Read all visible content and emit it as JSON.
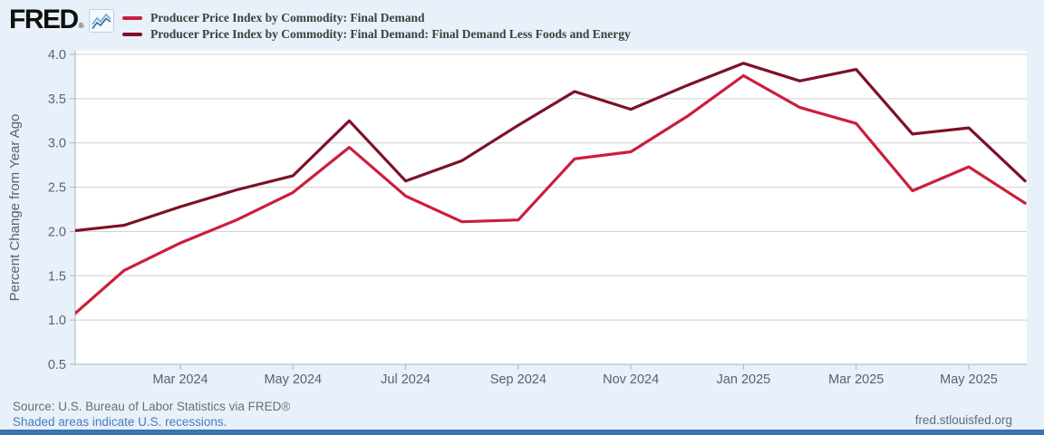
{
  "header": {
    "logo_text": "FRED",
    "logo_reg": "®",
    "legend": [
      {
        "label": "Producer Price Index by Commodity: Final Demand",
        "color": "#cc1e3c"
      },
      {
        "label": "Producer Price Index by Commodity: Final Demand: Final Demand Less Foods and Energy",
        "color": "#7d1128"
      }
    ]
  },
  "footer": {
    "source": "Source: U.S. Bureau of Labor Statistics via FRED®",
    "recessions_note": "Shaded areas indicate U.S. recessions.",
    "site": "fred.stlouisfed.org"
  },
  "colors": {
    "page_bg": "#e8f1fa",
    "plot_bg": "#ffffff",
    "grid": "#cfcfcf",
    "axis": "#a9b4c0",
    "tick_text": "#5a6270",
    "series_final_demand": "#cc1e3c",
    "series_less_foods_energy": "#7d1128",
    "bottom_bar": "#3c72b0",
    "link_blue": "#4a7bbf"
  },
  "chart_data": {
    "type": "line",
    "title": "",
    "xlabel": "",
    "ylabel": "Percent Change from Year Ago",
    "ylim": [
      0.5,
      4.0
    ],
    "ytick_step": 0.5,
    "ytick_labels": [
      "4.0",
      "3.5",
      "3.0",
      "2.5",
      "2.0",
      "1.5",
      "1.0",
      "0.5"
    ],
    "grid": "horizontal",
    "legend_position": "top-left",
    "x": [
      "2024-01",
      "2024-02",
      "2024-03",
      "2024-04",
      "2024-05",
      "2024-06",
      "2024-07",
      "2024-08",
      "2024-09",
      "2024-10",
      "2024-11",
      "2024-12",
      "2025-01",
      "2025-02",
      "2025-03",
      "2025-04",
      "2025-05",
      "2025-06"
    ],
    "xtick_labels": [
      {
        "index": 2,
        "label": "Mar 2024"
      },
      {
        "index": 4,
        "label": "May 2024"
      },
      {
        "index": 6,
        "label": "Jul 2024"
      },
      {
        "index": 8,
        "label": "Sep 2024"
      },
      {
        "index": 10,
        "label": "Nov 2024"
      },
      {
        "index": 12,
        "label": "Jan 2025"
      },
      {
        "index": 14,
        "label": "Mar 2025"
      },
      {
        "index": 16,
        "label": "May 2025"
      }
    ],
    "series": [
      {
        "name": "Producer Price Index by Commodity: Final Demand",
        "color": "#cc1e3c",
        "values": [
          1.0,
          1.56,
          1.87,
          2.13,
          2.44,
          2.95,
          2.4,
          2.11,
          2.13,
          2.82,
          2.9,
          3.3,
          3.76,
          3.4,
          3.22,
          2.46,
          2.73,
          2.32
        ]
      },
      {
        "name": "Producer Price Index by Commodity: Final Demand: Final Demand Less Foods and Energy",
        "color": "#7d1128",
        "values": [
          2.0,
          2.07,
          2.28,
          2.47,
          2.63,
          3.25,
          2.57,
          2.8,
          3.2,
          3.58,
          3.38,
          3.65,
          3.9,
          3.7,
          3.83,
          3.1,
          3.17,
          2.57
        ]
      }
    ]
  }
}
